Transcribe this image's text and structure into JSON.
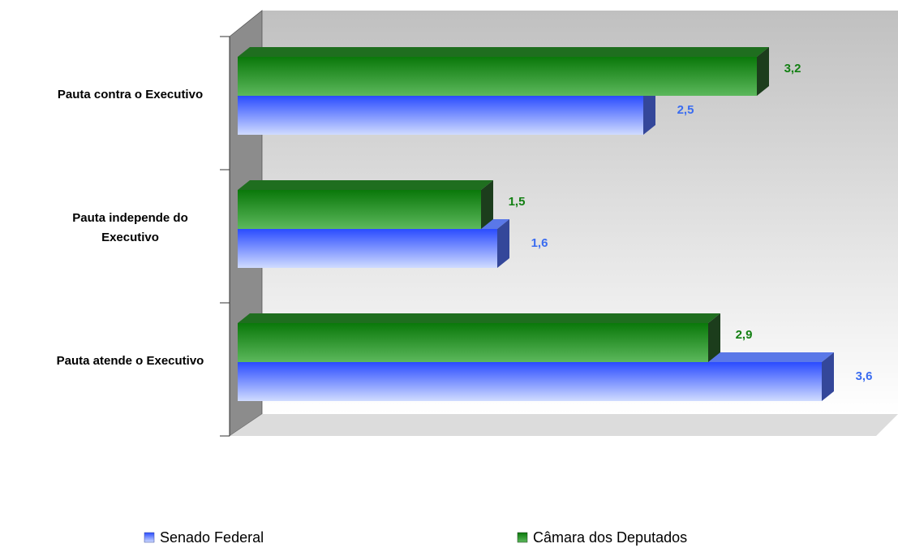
{
  "chart_data": {
    "type": "bar3d",
    "orientation": "horizontal",
    "categories": [
      "Pauta contra o Executivo",
      "Pauta independe do Executivo",
      "Pauta atende o Executivo"
    ],
    "series": [
      {
        "name": "Senado Federal",
        "color": "#4466ff",
        "values": [
          2.5,
          1.6,
          3.6
        ],
        "value_labels": [
          "2,5",
          "1,6",
          "3,6"
        ]
      },
      {
        "name": "Câmara dos Deputados",
        "color": "#008000",
        "values": [
          3.2,
          1.5,
          2.9
        ],
        "value_labels": [
          "3,2",
          "1,5",
          "2,9"
        ]
      }
    ]
  }
}
